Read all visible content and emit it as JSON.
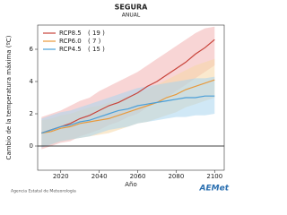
{
  "chart_data": {
    "type": "line",
    "title": "SEGURA",
    "subtitle": "ANUAL",
    "y_label": "Cambio de la temperatura máxima (ºC)",
    "x_label": "Año",
    "x": [
      2010,
      2015,
      2020,
      2025,
      2030,
      2035,
      2040,
      2045,
      2050,
      2055,
      2060,
      2065,
      2070,
      2075,
      2080,
      2085,
      2090,
      2095,
      2100
    ],
    "series": [
      {
        "name": "RCP8.5",
        "models": "( 19 )",
        "color": "#c8433a",
        "band_color": "#f2b3b3",
        "values": [
          0.8,
          1.0,
          1.2,
          1.4,
          1.7,
          1.9,
          2.2,
          2.5,
          2.7,
          3.0,
          3.3,
          3.7,
          4.0,
          4.4,
          4.8,
          5.2,
          5.7,
          6.1,
          6.6
        ],
        "lower": [
          -0.2,
          0.0,
          0.2,
          0.3,
          0.6,
          0.8,
          1.0,
          1.3,
          1.5,
          1.8,
          2.0,
          2.4,
          2.7,
          3.0,
          3.4,
          3.8,
          4.2,
          4.6,
          5.0
        ],
        "upper": [
          1.8,
          2.0,
          2.2,
          2.5,
          2.8,
          3.0,
          3.4,
          3.7,
          4.0,
          4.3,
          4.6,
          5.0,
          5.4,
          5.8,
          6.2,
          6.6,
          7.0,
          7.3,
          7.4
        ]
      },
      {
        "name": "RCP6.0",
        "models": "( 7 )",
        "color": "#e89a3c",
        "band_color": "#f6d7a6",
        "values": [
          0.8,
          0.9,
          1.1,
          1.2,
          1.4,
          1.5,
          1.6,
          1.7,
          1.9,
          2.1,
          2.3,
          2.5,
          2.7,
          3.0,
          3.2,
          3.5,
          3.7,
          3.9,
          4.1
        ],
        "lower": [
          0.0,
          0.1,
          0.3,
          0.4,
          0.5,
          0.6,
          0.7,
          0.8,
          1.0,
          1.2,
          1.4,
          1.5,
          1.7,
          1.9,
          2.1,
          2.4,
          2.6,
          2.8,
          3.0
        ],
        "upper": [
          1.6,
          1.7,
          1.9,
          2.0,
          2.2,
          2.4,
          2.5,
          2.7,
          2.9,
          3.1,
          3.3,
          3.5,
          3.8,
          4.1,
          4.4,
          4.7,
          5.0,
          5.2,
          5.4
        ]
      },
      {
        "name": "RCP4.5",
        "models": "( 15 )",
        "color": "#4a9fd8",
        "band_color": "#a9d5ef",
        "values": [
          0.8,
          1.0,
          1.2,
          1.3,
          1.5,
          1.6,
          1.8,
          2.0,
          2.2,
          2.3,
          2.5,
          2.6,
          2.7,
          2.8,
          2.9,
          3.0,
          3.0,
          3.1,
          3.1
        ],
        "lower": [
          -0.1,
          0.1,
          0.3,
          0.4,
          0.5,
          0.6,
          0.8,
          1.0,
          1.1,
          1.2,
          1.4,
          1.5,
          1.6,
          1.7,
          1.8,
          1.8,
          1.9,
          1.9,
          2.0
        ],
        "upper": [
          1.7,
          1.9,
          2.1,
          2.2,
          2.4,
          2.6,
          2.8,
          3.0,
          3.2,
          3.4,
          3.6,
          3.7,
          3.8,
          3.9,
          4.0,
          4.1,
          4.2,
          4.2,
          4.3
        ]
      }
    ],
    "xlim": [
      2008,
      2105
    ],
    "ylim": [
      -1.5,
      7.5
    ],
    "xticks": [
      2020,
      2040,
      2060,
      2080,
      2100
    ],
    "yticks": [
      0,
      2,
      4,
      6
    ],
    "zero_line": true,
    "grid": false,
    "legend": "upper left"
  },
  "footer": {
    "agency": "Agencia Estatal de Meteorología",
    "logo": "AEMet"
  }
}
